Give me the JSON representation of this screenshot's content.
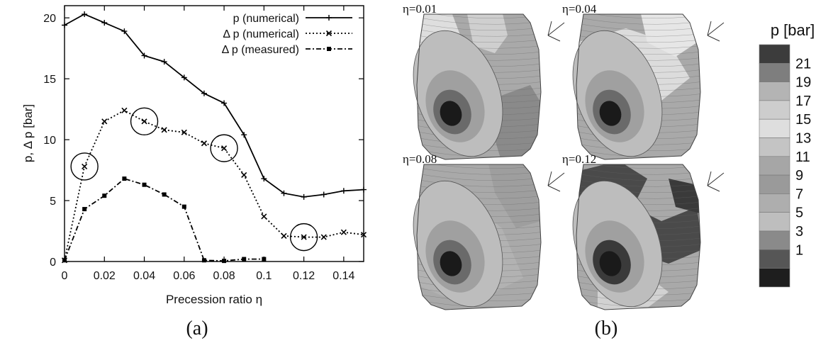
{
  "panel_labels": {
    "a": "(a)",
    "b": "(b)"
  },
  "chart_data": {
    "type": "line",
    "xlabel": "Precession ratio η",
    "ylabel": "p, Δ p [bar]",
    "xlim": [
      0,
      0.15
    ],
    "ylim": [
      0,
      21
    ],
    "xticks": [
      "0",
      "0.02",
      "0.04",
      "0.06",
      "0.08",
      "0.1",
      "0.12",
      "0.14"
    ],
    "yticks": [
      "0",
      "5",
      "10",
      "15",
      "20"
    ],
    "legend_position": "top-right",
    "series": [
      {
        "name": "p (numerical)",
        "style": "solid",
        "marker": "plus",
        "x": [
          0,
          0.01,
          0.02,
          0.03,
          0.04,
          0.05,
          0.06,
          0.07,
          0.08,
          0.09,
          0.1,
          0.11,
          0.12,
          0.13,
          0.14,
          0.15
        ],
        "y": [
          19.4,
          20.3,
          19.6,
          18.9,
          16.9,
          16.4,
          15.1,
          13.8,
          13.0,
          10.4,
          6.8,
          5.6,
          5.3,
          5.5,
          5.8,
          5.9
        ]
      },
      {
        "name": "Δ p (numerical)",
        "style": "dotted",
        "marker": "cross",
        "x": [
          0,
          0.01,
          0.02,
          0.03,
          0.04,
          0.05,
          0.06,
          0.07,
          0.08,
          0.09,
          0.1,
          0.11,
          0.12,
          0.13,
          0.14,
          0.15
        ],
        "y": [
          0.1,
          7.8,
          11.5,
          12.4,
          11.5,
          10.8,
          10.6,
          9.7,
          9.3,
          7.1,
          3.7,
          2.1,
          2.0,
          2.0,
          2.4,
          2.2
        ]
      },
      {
        "name": "Δ p (measured)",
        "style": "dashdot",
        "marker": "square",
        "x": [
          0,
          0.01,
          0.02,
          0.03,
          0.04,
          0.05,
          0.06,
          0.07,
          0.08,
          0.09,
          0.1
        ],
        "y": [
          0.1,
          4.3,
          5.4,
          6.8,
          6.3,
          5.5,
          4.5,
          0.1,
          0.05,
          0.2,
          0.2
        ]
      }
    ],
    "annotations": {
      "circled_points_x": [
        0.01,
        0.04,
        0.08,
        0.12
      ]
    }
  },
  "rotor_views": [
    {
      "eta_label": "η=0.01",
      "zones": "zones-a"
    },
    {
      "eta_label": "η=0.04",
      "zones": "zones-b"
    },
    {
      "eta_label": "η=0.08",
      "zones": "zones-c"
    },
    {
      "eta_label": "η=0.12",
      "zones": "zones-d"
    }
  ],
  "colorbar": {
    "title": "p [bar]",
    "labels": [
      "21",
      "19",
      "17",
      "15",
      "13",
      "11",
      "9",
      "7",
      "5",
      "3",
      "1"
    ],
    "colors": [
      "#3c3c3c",
      "#7e7e7e",
      "#b4b4b4",
      "#cdcdcd",
      "#dedede",
      "#c4c4c4",
      "#a6a6a6",
      "#9a9a9a",
      "#aeaeae",
      "#bebebe",
      "#8a8a8a",
      "#565656",
      "#1e1e1e"
    ]
  }
}
